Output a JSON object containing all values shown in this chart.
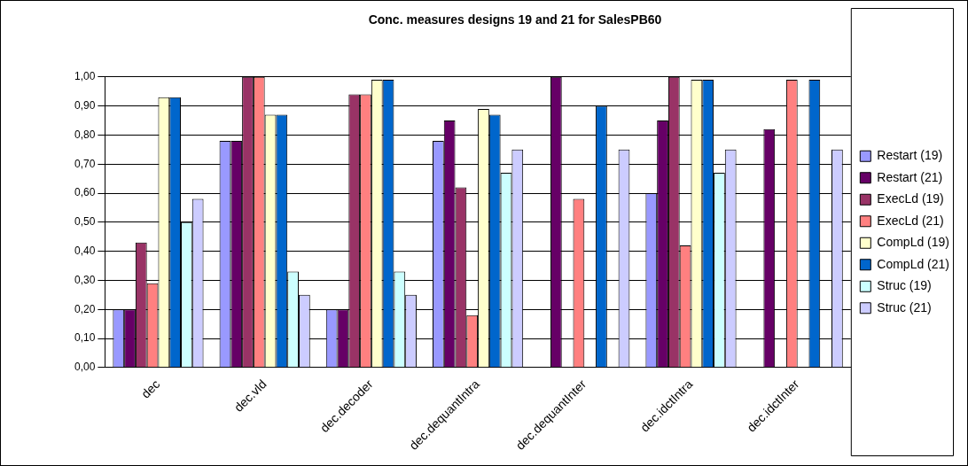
{
  "chart_data": {
    "type": "bar",
    "title": "Conc. measures designs 19 and 21 for SalesPB60",
    "categories": [
      "dec",
      "dec.vld",
      "dec.decoder",
      "dec.dequantIntra",
      "dec.dequantInter",
      "dec.idctIntra",
      "dec.idctInter"
    ],
    "series": [
      {
        "name": "Restart (19)",
        "color": "#9999ff",
        "values": [
          0.2,
          0.78,
          0.2,
          0.78,
          null,
          0.6,
          null
        ]
      },
      {
        "name": "Restart (21)",
        "color": "#660066",
        "values": [
          0.2,
          0.78,
          0.2,
          0.85,
          1.0,
          0.85,
          0.82
        ]
      },
      {
        "name": "ExecLd (19)",
        "color": "#993366",
        "values": [
          0.43,
          1.0,
          0.94,
          0.62,
          null,
          1.0,
          null
        ]
      },
      {
        "name": "ExecLd (21)",
        "color": "#ff8080",
        "values": [
          0.29,
          1.0,
          0.94,
          0.18,
          0.58,
          0.42,
          0.99
        ]
      },
      {
        "name": "CompLd (19)",
        "color": "#ffffcc",
        "values": [
          0.93,
          0.87,
          0.99,
          0.89,
          null,
          0.99,
          null
        ]
      },
      {
        "name": "CompLd (21)",
        "color": "#0066cc",
        "values": [
          0.93,
          0.87,
          0.99,
          0.87,
          0.9,
          0.99,
          0.99
        ]
      },
      {
        "name": "Struc (19)",
        "color": "#ccffff",
        "values": [
          0.5,
          0.33,
          0.33,
          0.67,
          null,
          0.67,
          null
        ]
      },
      {
        "name": "Struc (21)",
        "color": "#ccccff",
        "values": [
          0.58,
          0.25,
          0.25,
          0.75,
          0.75,
          0.75,
          0.75
        ]
      }
    ],
    "ylim": [
      0,
      1
    ],
    "yticks": [
      {
        "value": 0,
        "label": "0,00"
      },
      {
        "value": 0.1,
        "label": "0,10"
      },
      {
        "value": 0.2,
        "label": "0,20"
      },
      {
        "value": 0.3,
        "label": "0,30"
      },
      {
        "value": 0.4,
        "label": "0,40"
      },
      {
        "value": 0.5,
        "label": "0,50"
      },
      {
        "value": 0.6,
        "label": "0,60"
      },
      {
        "value": 0.7,
        "label": "0,70"
      },
      {
        "value": 0.8,
        "label": "0,80"
      },
      {
        "value": 0.9,
        "label": "0,90"
      },
      {
        "value": 1,
        "label": "1,00"
      }
    ],
    "grid": "y",
    "legend": "right"
  }
}
